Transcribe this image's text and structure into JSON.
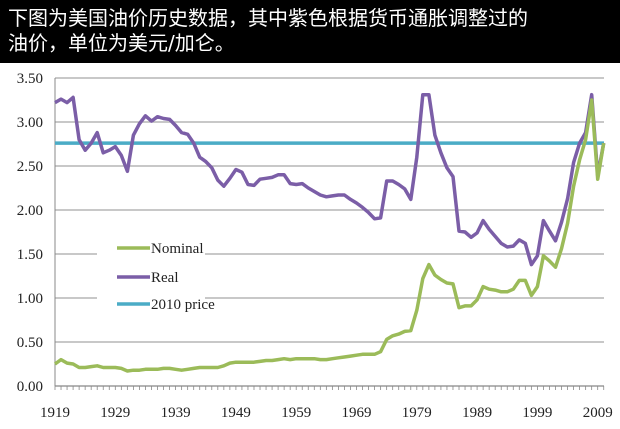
{
  "header": {
    "line1": "下图为美国油价历史数据，其中紫色根据货币通胀调整过的",
    "line2": "油价，单位为美元/加仑。"
  },
  "chart_data": {
    "type": "line",
    "xlabel": "",
    "ylabel": "",
    "xlim": [
      1919,
      2010
    ],
    "ylim": [
      0,
      3.5
    ],
    "y_ticks": [
      "0.00",
      "0.50",
      "1.00",
      "1.50",
      "2.00",
      "2.50",
      "3.00",
      "3.50"
    ],
    "x_ticks": [
      "1919",
      "1929",
      "1939",
      "1949",
      "1959",
      "1969",
      "1979",
      "1989",
      "1999",
      "2009"
    ],
    "grid": "horizontal",
    "legend_placement": "center-left",
    "x_start": 1919,
    "series": [
      {
        "name": "Nominal",
        "color": "#9bbb59",
        "values": [
          0.25,
          0.3,
          0.26,
          0.25,
          0.21,
          0.21,
          0.22,
          0.23,
          0.21,
          0.21,
          0.21,
          0.2,
          0.17,
          0.18,
          0.18,
          0.19,
          0.19,
          0.19,
          0.2,
          0.2,
          0.19,
          0.18,
          0.19,
          0.2,
          0.21,
          0.21,
          0.21,
          0.21,
          0.23,
          0.26,
          0.27,
          0.27,
          0.27,
          0.27,
          0.28,
          0.29,
          0.29,
          0.3,
          0.31,
          0.3,
          0.31,
          0.31,
          0.31,
          0.31,
          0.3,
          0.3,
          0.31,
          0.32,
          0.33,
          0.34,
          0.35,
          0.36,
          0.36,
          0.36,
          0.39,
          0.53,
          0.57,
          0.59,
          0.62,
          0.63,
          0.86,
          1.22,
          1.38,
          1.26,
          1.21,
          1.17,
          1.16,
          0.89,
          0.91,
          0.91,
          0.98,
          1.13,
          1.1,
          1.09,
          1.07,
          1.07,
          1.1,
          1.2,
          1.2,
          1.03,
          1.13,
          1.48,
          1.42,
          1.35,
          1.56,
          1.85,
          2.27,
          2.57,
          2.8,
          3.25,
          2.35,
          2.76
        ]
      },
      {
        "name": "Real",
        "color": "#7b5ea7",
        "values": [
          3.22,
          3.26,
          3.22,
          3.28,
          2.8,
          2.68,
          2.76,
          2.88,
          2.65,
          2.68,
          2.72,
          2.62,
          2.44,
          2.85,
          2.98,
          3.07,
          3.01,
          3.06,
          3.04,
          3.03,
          2.96,
          2.88,
          2.86,
          2.76,
          2.6,
          2.55,
          2.48,
          2.34,
          2.27,
          2.36,
          2.46,
          2.43,
          2.29,
          2.28,
          2.35,
          2.36,
          2.37,
          2.4,
          2.4,
          2.3,
          2.29,
          2.3,
          2.25,
          2.21,
          2.17,
          2.15,
          2.16,
          2.17,
          2.17,
          2.12,
          2.08,
          2.03,
          1.97,
          1.9,
          1.91,
          2.33,
          2.33,
          2.29,
          2.24,
          2.12,
          2.6,
          3.31,
          3.31,
          2.85,
          2.65,
          2.48,
          2.38,
          1.76,
          1.75,
          1.69,
          1.74,
          1.88,
          1.78,
          1.7,
          1.62,
          1.58,
          1.59,
          1.66,
          1.62,
          1.38,
          1.48,
          1.88,
          1.76,
          1.65,
          1.86,
          2.13,
          2.54,
          2.76,
          2.88,
          3.31,
          2.39,
          2.76
        ]
      },
      {
        "name": "2010 price",
        "color": "#4bacc6",
        "constant": 2.76
      }
    ]
  }
}
